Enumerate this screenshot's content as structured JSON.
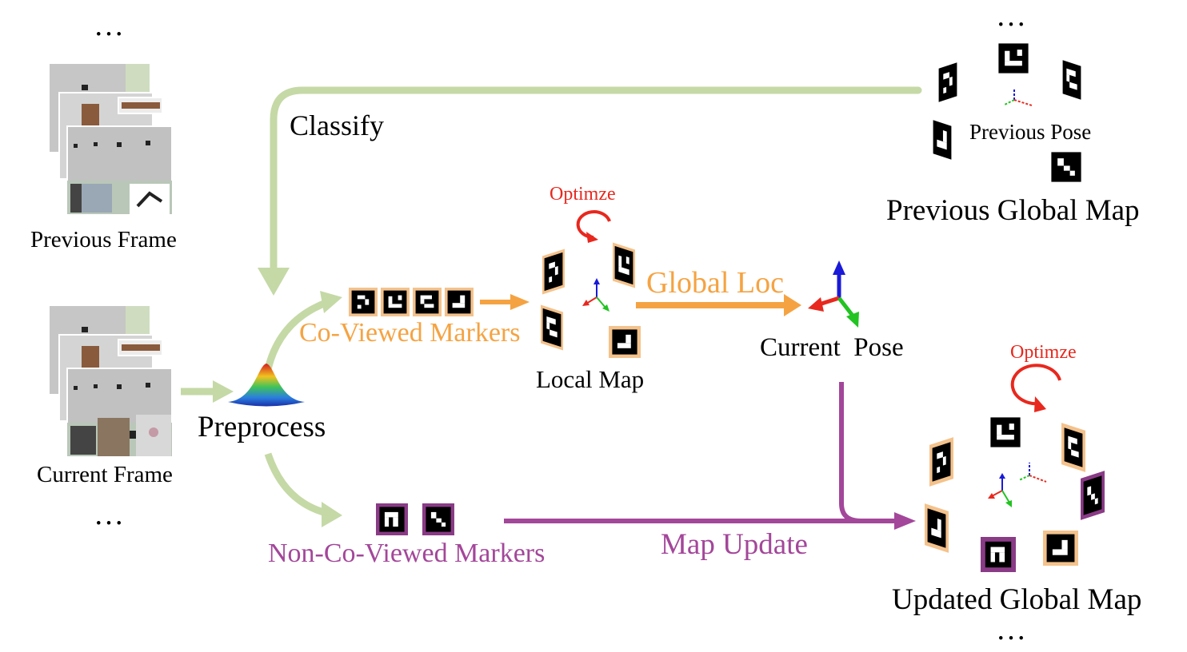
{
  "colors": {
    "green_arrow": "#c5d9a6",
    "orange": "#f5a342",
    "purple": "#a3479a",
    "red": "#e8281e",
    "black": "#000000",
    "marker_frame_orange": "#f4c28c",
    "marker_frame_purple": "#8a3b86"
  },
  "labels": {
    "ellipsis": "…",
    "previous_frame": "Previous Frame",
    "current_frame": "Current Frame",
    "classify": "Classify",
    "preprocess": "Preprocess",
    "co_viewed_markers": "Co-Viewed Markers",
    "non_co_viewed_markers": "Non-Co-Viewed Markers",
    "local_map": "Local Map",
    "optimize_local": "Optimze",
    "optimize_global": "Optimze",
    "global_loc": "Global Loc",
    "current_pose": "Current  Pose",
    "previous_pose": "Previous Pose",
    "previous_global_map": "Previous Global Map",
    "map_update": "Map Update",
    "updated_global_map": "Updated Global Map"
  },
  "icons": {
    "frame_stack": "scene-image-stack-icon",
    "marker": "aruco-marker-icon",
    "axes": "coordinate-axes-icon",
    "optimize": "circular-arrow-icon",
    "preprocess": "gaussian-surface-icon"
  }
}
